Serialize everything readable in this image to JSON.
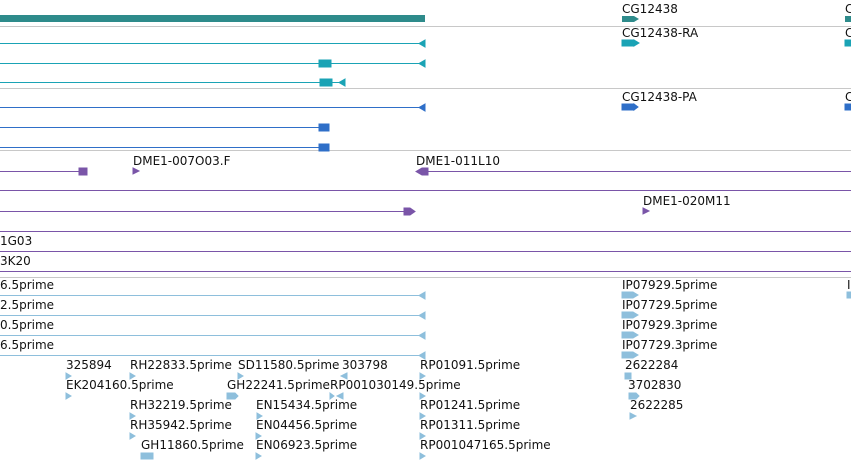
{
  "colors": {
    "gene": "#2e8b8b",
    "transcript": "#1aa3b5",
    "protein": "#2f6fc8",
    "clone": "#7a55a8",
    "est": "#8ebfdc",
    "separator": "#c8c8c8"
  },
  "labels": {
    "gene_name": "CG12438",
    "gene_name_cut": "C",
    "transcript_name": "CG12438-RA",
    "transcript_name_cut": "C",
    "protein_name": "CG12438-PA",
    "protein_name_cut": "C",
    "clone_a": "DME1-007O03.F",
    "clone_b": "DME1-011L10",
    "clone_c": "DME1-020M11",
    "clone_d": "1G03",
    "clone_e": "3K20",
    "est_left": [
      "6.5prime",
      "2.5prime",
      "0.5prime",
      "6.5prime"
    ],
    "est_right": [
      "IP07929.5prime",
      "IP07729.5prime",
      "IP07929.3prime",
      "IP07729.3prime"
    ],
    "est_right_cut": "I",
    "cluster": {
      "a1": "325894",
      "a2": "EK204160.5prime",
      "b1": "RH22833.5prime",
      "b2": "RH32219.5prime",
      "b3": "RH35942.5prime",
      "b4": "GH11860.5prime",
      "c1": "SD11580.5prime",
      "c2": "GH22241.5prime",
      "c3": "EN15434.5prime",
      "c4": "EN04456.5prime",
      "c5": "EN06923.5prime",
      "d1": "303798",
      "d2": "RP001030149.5prime",
      "e1": "RP01091.5prime",
      "e2": "RP01241.5prime",
      "e3": "RP01311.5prime",
      "e4": "RP001047165.5prime",
      "f1": "2622284",
      "f2": "3702830",
      "f3": "2622285"
    }
  }
}
